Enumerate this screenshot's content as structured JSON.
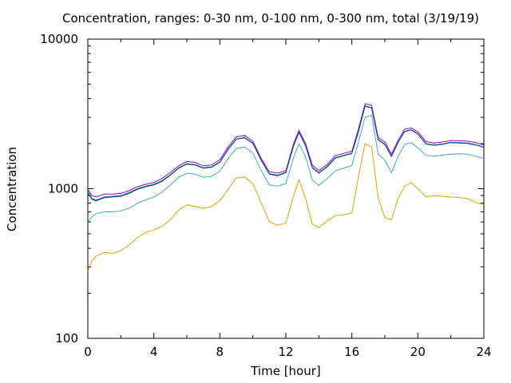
{
  "chart_data": {
    "type": "line",
    "title": "Concentration, ranges: 0-30 nm, 0-100 nm, 0-300 nm, total (3/19/19)",
    "xlabel": "Time [hour]",
    "ylabel": "Concentration",
    "xlim": [
      0,
      24
    ],
    "ylim": [
      100,
      10000
    ],
    "yscale": "log",
    "grid": false,
    "legend": "none",
    "x_ticks": [
      "0",
      "4",
      "8",
      "12",
      "16",
      "20",
      "24"
    ],
    "y_ticks": [
      "100",
      "1000",
      "10000"
    ],
    "x": [
      0,
      0.25,
      0.5,
      1,
      1.5,
      2,
      2.5,
      3,
      3.5,
      4,
      4.5,
      5,
      5.5,
      6,
      6.5,
      7,
      7.5,
      8,
      8.5,
      9,
      9.5,
      10,
      10.5,
      11,
      11.5,
      12,
      12.5,
      12.8,
      13.2,
      13.6,
      14,
      14.5,
      15,
      15.5,
      16,
      16.4,
      16.8,
      17.2,
      17.6,
      18,
      18.4,
      18.8,
      19.2,
      19.6,
      20,
      20.5,
      21,
      21.5,
      22,
      22.5,
      23,
      23.5,
      24
    ],
    "series": [
      {
        "color": "#9400d3",
        "values": [
          990,
          900,
          880,
          920,
          920,
          930,
          970,
          1030,
          1070,
          1100,
          1170,
          1280,
          1420,
          1520,
          1500,
          1420,
          1440,
          1560,
          1900,
          2220,
          2270,
          2080,
          1600,
          1300,
          1270,
          1320,
          2050,
          2450,
          2000,
          1440,
          1320,
          1450,
          1660,
          1720,
          1780,
          2500,
          3700,
          3600,
          2200,
          2050,
          1700,
          2100,
          2500,
          2550,
          2400,
          2060,
          2020,
          2050,
          2100,
          2090,
          2080,
          2030,
          1960
        ]
      },
      {
        "color": "#008080",
        "values": [
          960,
          860,
          840,
          880,
          890,
          900,
          940,
          1000,
          1040,
          1070,
          1130,
          1240,
          1380,
          1470,
          1450,
          1380,
          1400,
          1510,
          1840,
          2150,
          2200,
          2020,
          1560,
          1260,
          1230,
          1290,
          1990,
          2380,
          1940,
          1390,
          1280,
          1410,
          1610,
          1670,
          1730,
          2420,
          3580,
          3480,
          2130,
          1980,
          1650,
          2040,
          2420,
          2480,
          2330,
          2000,
          1960,
          1990,
          2040,
          2030,
          2020,
          1970,
          1900
        ]
      },
      {
        "color": "#1f3a93",
        "values": [
          940,
          850,
          830,
          870,
          880,
          890,
          930,
          990,
          1030,
          1060,
          1120,
          1230,
          1370,
          1460,
          1440,
          1370,
          1390,
          1500,
          1830,
          2140,
          2190,
          2010,
          1550,
          1250,
          1220,
          1280,
          1980,
          2370,
          1930,
          1380,
          1270,
          1400,
          1600,
          1660,
          1720,
          2400,
          3560,
          3460,
          2120,
          1970,
          1640,
          2030,
          2410,
          2470,
          2320,
          1990,
          1950,
          1980,
          2030,
          2020,
          2010,
          1960,
          1890
        ]
      },
      {
        "color": "#3fa7d6",
        "values": [
          600,
          650,
          680,
          700,
          700,
          710,
          740,
          800,
          840,
          880,
          950,
          1060,
          1190,
          1270,
          1250,
          1190,
          1210,
          1310,
          1590,
          1860,
          1900,
          1730,
          1330,
          1060,
          1040,
          1080,
          1650,
          2000,
          1630,
          1140,
          1050,
          1170,
          1320,
          1370,
          1430,
          2050,
          3000,
          3100,
          1700,
          1550,
          1280,
          1640,
          1980,
          2030,
          1880,
          1670,
          1650,
          1680,
          1700,
          1710,
          1700,
          1650,
          1590
        ]
      },
      {
        "color": "#e0a000",
        "values": [
          280,
          330,
          355,
          375,
          370,
          385,
          420,
          470,
          510,
          530,
          560,
          620,
          720,
          780,
          760,
          740,
          760,
          830,
          990,
          1180,
          1200,
          1080,
          810,
          600,
          570,
          590,
          920,
          1150,
          860,
          580,
          550,
          610,
          660,
          670,
          690,
          1200,
          2000,
          1900,
          870,
          640,
          620,
          860,
          1040,
          1100,
          1000,
          880,
          900,
          890,
          880,
          870,
          860,
          810,
          780
        ]
      }
    ]
  }
}
